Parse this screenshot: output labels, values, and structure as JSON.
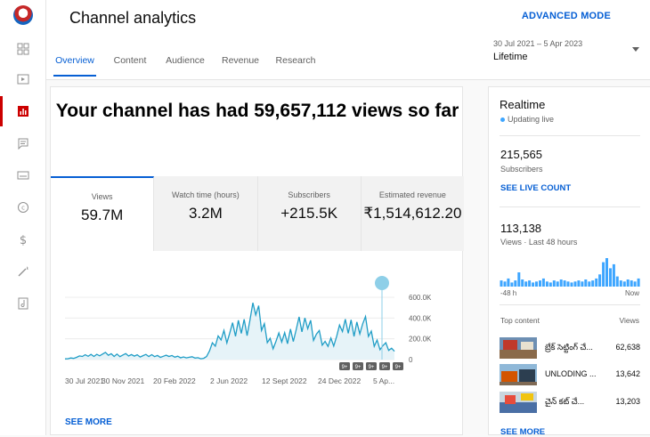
{
  "rail": {
    "icons": [
      "logo",
      "dashboard-icon",
      "content-icon",
      "analytics-icon",
      "comments-icon",
      "subtitles-icon",
      "copyright-icon",
      "earn-icon",
      "customization-icon",
      "audio-library-icon"
    ]
  },
  "header": {
    "title": "Channel analytics",
    "advanced_mode": "ADVANCED MODE",
    "tabs": [
      {
        "label": "Overview",
        "active": true
      },
      {
        "label": "Content"
      },
      {
        "label": "Audience"
      },
      {
        "label": "Revenue"
      },
      {
        "label": "Research"
      }
    ],
    "date_range": "30 Jul 2021 – 5 Apr 2023",
    "period": "Lifetime"
  },
  "main": {
    "banner": "Your channel has had 59,657,112 views so far",
    "metrics": [
      {
        "label": "Views",
        "value": "59.7M",
        "active": true
      },
      {
        "label": "Watch time (hours)",
        "value": "3.2M"
      },
      {
        "label": "Subscribers",
        "value": "+215.5K"
      },
      {
        "label": "Estimated revenue",
        "value": "₹1,514,612.20"
      }
    ],
    "see_more": "SEE MORE"
  },
  "chart_data": {
    "type": "area",
    "title": "",
    "y_ticks": [
      "600.0K",
      "400.0K",
      "200.0K",
      "0"
    ],
    "ylim": [
      0,
      600000
    ],
    "x_ticks": [
      "30 Jul 2021",
      "30 Nov 2021",
      "20 Feb 2022",
      "2 Jun 2022",
      "12 Sept 2022",
      "24 Dec 2022",
      "5 Ap..."
    ],
    "series": [
      {
        "x": [
          "30 Jul 2021",
          "Sep 2021",
          "Oct 2021",
          "30 Nov 2021",
          "Jan 2022",
          "20 Feb 2022",
          "Mar 2022",
          "Apr 2022",
          "May 2022",
          "2 Jun 2022",
          "Jul 2022",
          "Aug 2022",
          "12 Sept 2022",
          "Oct 2022",
          "Nov 2022",
          "24 Dec 2022",
          "Jan 2023",
          "Feb 2023",
          "Mar 2023",
          "5 Apr 2023"
        ],
        "y": [
          5000,
          30000,
          55000,
          45000,
          40000,
          35000,
          30000,
          25000,
          10000,
          230000,
          280000,
          430000,
          160000,
          250000,
          360000,
          130000,
          270000,
          380000,
          160000,
          80000
        ]
      }
    ],
    "annotation_count": 5,
    "annotations": [
      "9+",
      "9+",
      "9+",
      "9+",
      "9+"
    ]
  },
  "sidebar": {
    "realtime_title": "Realtime",
    "updating": "Updating live",
    "subscribers_value": "215,565",
    "subscribers_label": "Subscribers",
    "see_live": "SEE LIVE COUNT",
    "views_value": "113,138",
    "views_label": "Views · Last 48 hours",
    "mini_chart": [
      6,
      5,
      8,
      4,
      6,
      14,
      7,
      5,
      6,
      4,
      5,
      6,
      8,
      5,
      4,
      6,
      5,
      7,
      6,
      5,
      4,
      5,
      6,
      5,
      7,
      5,
      6,
      8,
      12,
      24,
      28,
      18,
      22,
      10,
      6,
      5,
      7,
      6,
      5,
      8
    ],
    "axis_left": "-48 h",
    "axis_right": "Now",
    "top_content_label": "Top content",
    "views_header": "Views",
    "top_content": [
      {
        "title": "బ్రేక్ సెట్టింగ్ చే...",
        "views": "62,638"
      },
      {
        "title": "UNLODING ...",
        "views": "13,642"
      },
      {
        "title": "చైన్ కట్ చే...",
        "views": "13,203"
      }
    ],
    "see_more": "SEE MORE"
  }
}
